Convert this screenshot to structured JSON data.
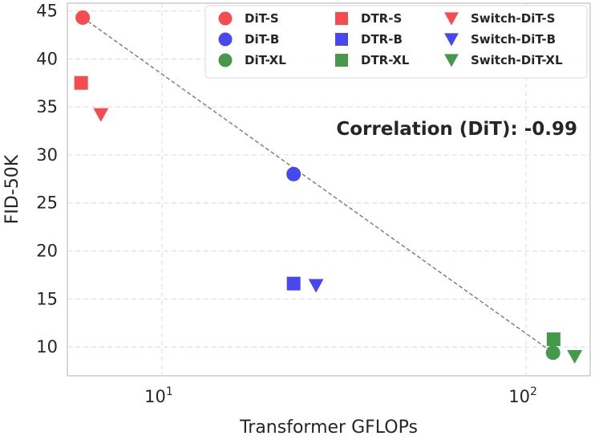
{
  "chart_data": {
    "type": "scatter",
    "xlabel": "Transformer GFLOPs",
    "ylabel": "FID-50K",
    "xscale": "log",
    "xlim": [
      5.5,
      150
    ],
    "ylim": [
      7.0,
      45.8
    ],
    "xticks": [
      {
        "value": 10,
        "base": "10",
        "exp": "1"
      },
      {
        "value": 100,
        "base": "10",
        "exp": "2"
      }
    ],
    "yticks": [
      10,
      15,
      20,
      25,
      30,
      35,
      40,
      45
    ],
    "grid": true,
    "legend_position": "top-right",
    "annotation": "Correlation (DiT): -0.99",
    "trendline": {
      "from": [
        6.06,
        44.3
      ],
      "to": [
        118.6,
        9.4
      ],
      "style": "dashed",
      "color": "#808080"
    },
    "series": [
      {
        "name": "DiT-S",
        "marker": "circle",
        "color": "#f54d4f",
        "points": [
          [
            6.06,
            44.3
          ]
        ]
      },
      {
        "name": "DiT-B",
        "marker": "circle",
        "color": "#4848f0",
        "points": [
          [
            23.0,
            28.0
          ]
        ]
      },
      {
        "name": "DiT-XL",
        "marker": "circle",
        "color": "#45994a",
        "points": [
          [
            118.6,
            9.4
          ]
        ]
      },
      {
        "name": "DTR-S",
        "marker": "square",
        "color": "#f54d4f",
        "points": [
          [
            6.0,
            37.5
          ]
        ]
      },
      {
        "name": "DTR-B",
        "marker": "square",
        "color": "#4848f0",
        "points": [
          [
            23.0,
            16.6
          ]
        ]
      },
      {
        "name": "DTR-XL",
        "marker": "square",
        "color": "#45994a",
        "points": [
          [
            119.0,
            10.8
          ]
        ]
      },
      {
        "name": "Switch-DiT-S",
        "marker": "triangle",
        "color": "#f54d4f",
        "points": [
          [
            6.8,
            34.2
          ]
        ]
      },
      {
        "name": "Switch-DiT-B",
        "marker": "triangle",
        "color": "#4848f0",
        "points": [
          [
            26.5,
            16.4
          ]
        ]
      },
      {
        "name": "Switch-DiT-XL",
        "marker": "triangle",
        "color": "#45994a",
        "points": [
          [
            136.0,
            9.0
          ]
        ]
      }
    ]
  }
}
